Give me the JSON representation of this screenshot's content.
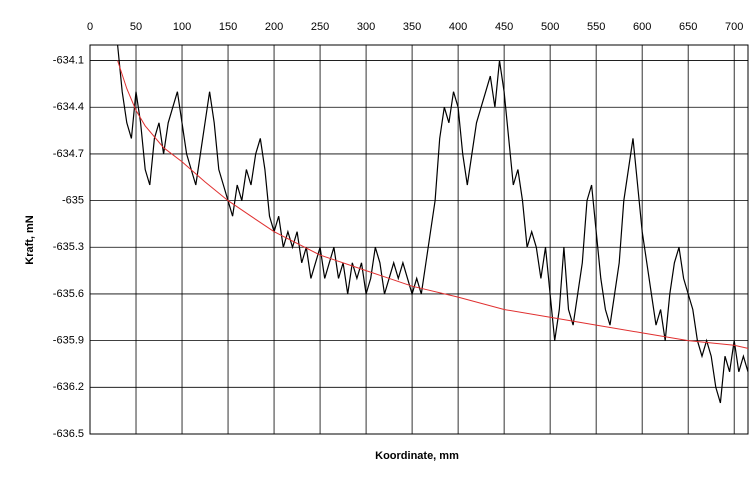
{
  "chart_data": {
    "type": "line",
    "x_label": "Koordinate, mm",
    "y_label": "Kraft, mN",
    "xlim": [
      0,
      715
    ],
    "ylim": [
      -636.5,
      -634.0
    ],
    "xticks": [
      0,
      50,
      100,
      150,
      200,
      250,
      300,
      350,
      400,
      450,
      500,
      550,
      600,
      650,
      700
    ],
    "yticks": [
      -634.1,
      -634.4,
      -634.7,
      -635,
      -635.3,
      -635.6,
      -635.9,
      -636.2,
      -636.5
    ],
    "grid": true,
    "series": [
      {
        "color": "#000000",
        "x": [
          30,
          35,
          40,
          45,
          50,
          55,
          60,
          65,
          70,
          75,
          80,
          85,
          90,
          95,
          100,
          105,
          110,
          115,
          120,
          125,
          130,
          135,
          140,
          145,
          150,
          155,
          160,
          165,
          170,
          175,
          180,
          185,
          190,
          195,
          200,
          205,
          210,
          215,
          220,
          225,
          230,
          235,
          240,
          245,
          250,
          255,
          260,
          265,
          270,
          275,
          280,
          285,
          290,
          295,
          300,
          305,
          310,
          315,
          320,
          325,
          330,
          335,
          340,
          345,
          350,
          355,
          360,
          365,
          370,
          375,
          380,
          385,
          390,
          395,
          400,
          405,
          410,
          415,
          420,
          425,
          430,
          435,
          440,
          445,
          450,
          455,
          460,
          465,
          470,
          475,
          480,
          485,
          490,
          495,
          500,
          505,
          510,
          515,
          520,
          525,
          530,
          535,
          540,
          545,
          550,
          555,
          560,
          565,
          570,
          575,
          580,
          585,
          590,
          595,
          600,
          605,
          610,
          615,
          620,
          625,
          630,
          635,
          640,
          645,
          650,
          655,
          660,
          665,
          670,
          675,
          680,
          685,
          690,
          695,
          700,
          705,
          710,
          715
        ],
        "values": [
          -634.0,
          -634.3,
          -634.5,
          -634.6,
          -634.3,
          -634.5,
          -634.8,
          -634.9,
          -634.6,
          -634.5,
          -634.7,
          -634.5,
          -634.4,
          -634.3,
          -634.5,
          -634.7,
          -634.8,
          -634.9,
          -634.7,
          -634.5,
          -634.3,
          -634.5,
          -634.8,
          -634.9,
          -635.0,
          -635.1,
          -634.9,
          -635.0,
          -634.8,
          -634.9,
          -634.7,
          -634.6,
          -634.8,
          -635.1,
          -635.2,
          -635.1,
          -635.3,
          -635.2,
          -635.3,
          -635.2,
          -635.4,
          -635.3,
          -635.5,
          -635.4,
          -635.3,
          -635.5,
          -635.4,
          -635.3,
          -635.5,
          -635.4,
          -635.6,
          -635.4,
          -635.5,
          -635.4,
          -635.6,
          -635.5,
          -635.3,
          -635.4,
          -635.6,
          -635.5,
          -635.4,
          -635.5,
          -635.4,
          -635.5,
          -635.6,
          -635.5,
          -635.6,
          -635.4,
          -635.2,
          -635.0,
          -634.6,
          -634.4,
          -634.5,
          -634.3,
          -634.4,
          -634.7,
          -634.9,
          -634.7,
          -634.5,
          -634.4,
          -634.3,
          -634.2,
          -634.4,
          -634.1,
          -634.3,
          -634.6,
          -634.9,
          -634.8,
          -635.0,
          -635.3,
          -635.2,
          -635.3,
          -635.5,
          -635.3,
          -635.6,
          -635.9,
          -635.7,
          -635.3,
          -635.7,
          -635.8,
          -635.6,
          -635.4,
          -635.0,
          -634.9,
          -635.2,
          -635.5,
          -635.7,
          -635.8,
          -635.6,
          -635.4,
          -635.0,
          -634.8,
          -634.6,
          -634.9,
          -635.2,
          -635.4,
          -635.6,
          -635.8,
          -635.7,
          -635.9,
          -635.6,
          -635.4,
          -635.3,
          -635.5,
          -635.6,
          -635.7,
          -635.9,
          -636.0,
          -635.9,
          -636.0,
          -636.2,
          -636.3,
          -636.0,
          -636.1,
          -635.9,
          -636.1,
          -636.0,
          -636.1
        ]
      },
      {
        "color": "#e03030",
        "x": [
          30,
          40,
          50,
          60,
          80,
          100,
          125,
          150,
          175,
          200,
          250,
          300,
          350,
          400,
          450,
          500,
          550,
          600,
          650,
          700,
          715
        ],
        "values": [
          -634.1,
          -634.28,
          -634.42,
          -634.52,
          -634.66,
          -634.75,
          -634.88,
          -635.0,
          -635.1,
          -635.2,
          -635.35,
          -635.45,
          -635.55,
          -635.62,
          -635.7,
          -635.75,
          -635.8,
          -635.85,
          -635.9,
          -635.93,
          -635.95
        ]
      }
    ]
  }
}
